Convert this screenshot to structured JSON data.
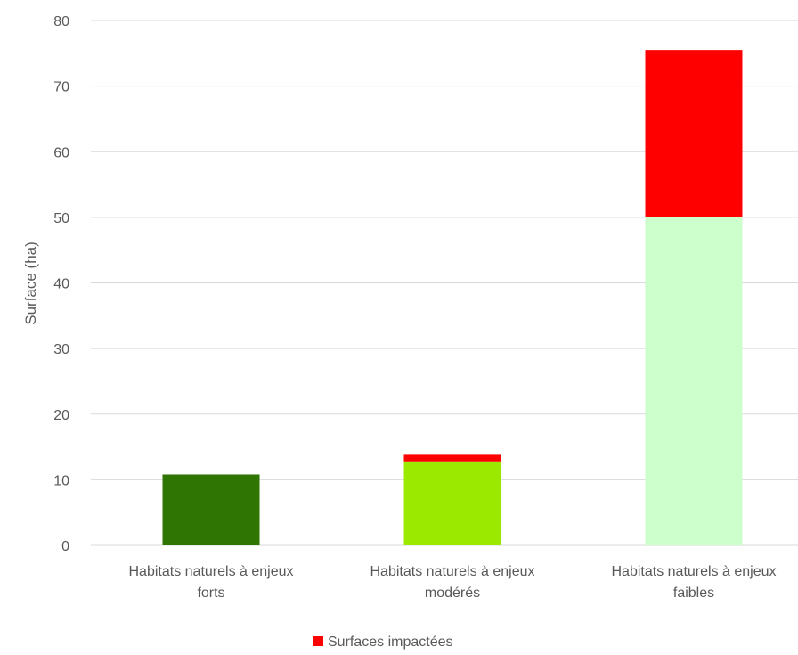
{
  "chart_data": {
    "type": "bar",
    "stacked": true,
    "categories": [
      [
        "Habitats naturels à enjeux",
        "forts"
      ],
      [
        "Habitats naturels à enjeux",
        "modérés"
      ],
      [
        "Habitats naturels à enjeux",
        "faibles"
      ]
    ],
    "base": {
      "values": [
        10.8,
        12.8,
        50
      ],
      "colors": [
        "#2e7504",
        "#9be800",
        "#ccffcc"
      ]
    },
    "series": [
      {
        "name": "Surfaces impactées",
        "values": [
          0,
          1,
          25.5
        ],
        "color": "#ff0000"
      }
    ],
    "ylabel": "Surface (ha)",
    "ylim": [
      0,
      80
    ],
    "yticks": [
      0,
      10,
      20,
      30,
      40,
      50,
      60,
      70,
      80
    ],
    "grid": true,
    "legend": "bottom"
  }
}
